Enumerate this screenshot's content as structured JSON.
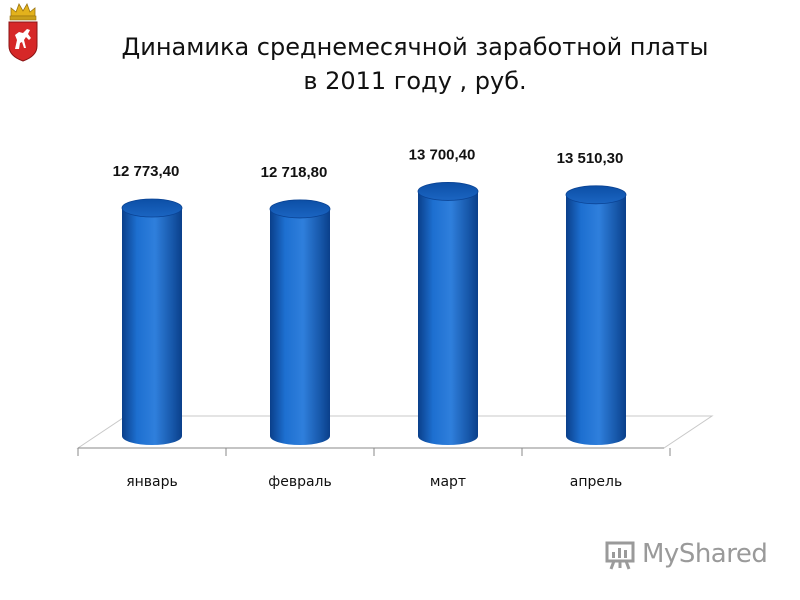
{
  "slide": {
    "title_line1": "Динамика среднемесячной заработной платы",
    "title_line2": "в 2011 году , руб.",
    "watermark": "MyShared"
  },
  "colors": {
    "bar_main": "#1a66c4",
    "bar_dark": "#0a3f8a",
    "bar_light": "#3d8ee8",
    "floor_stroke": "#c8c8c8",
    "axis": "#888888"
  },
  "chart_data": {
    "type": "bar",
    "style": "3d-cylinder",
    "categories": [
      "январь",
      "февраль",
      "март",
      "апрель"
    ],
    "values": [
      12773.4,
      12718.8,
      13700.4,
      13510.3
    ],
    "data_labels": [
      "12 773,40",
      "12 718,80",
      "13 700,40",
      "13 510,30"
    ],
    "title": "Динамика среднемесячной заработной платы в 2011 году , руб.",
    "xlabel": "",
    "ylabel": "",
    "ylim": [
      0,
      14900
    ],
    "grid": false,
    "legend": "none"
  }
}
